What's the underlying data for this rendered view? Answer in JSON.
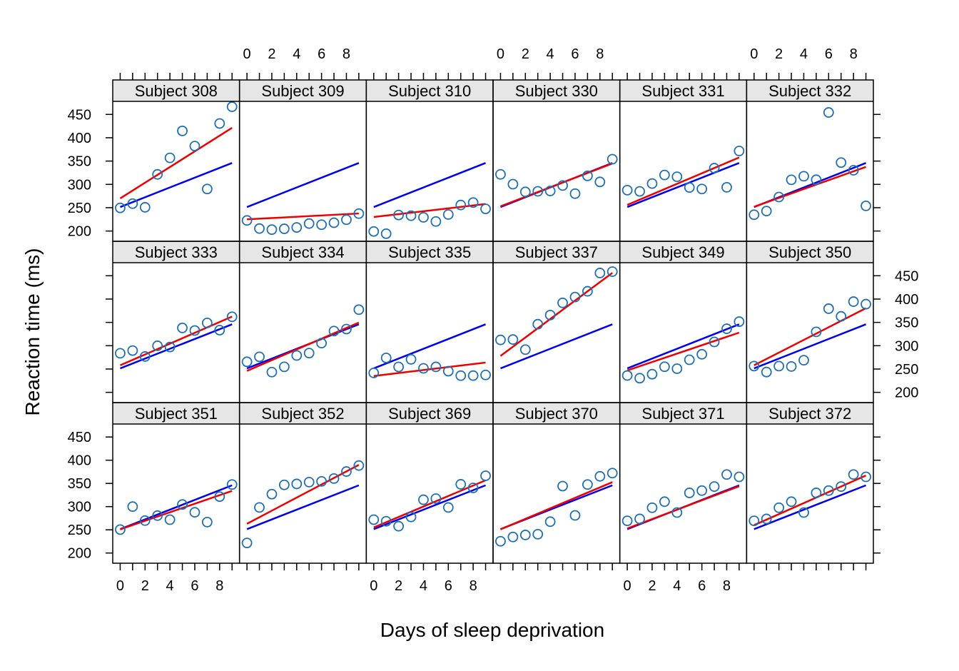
{
  "chart_data": {
    "type": "scatter",
    "xlabel": "Days of sleep deprivation",
    "ylabel": "Reaction time (ms)",
    "x_ticks": [
      0,
      2,
      4,
      6,
      8
    ],
    "y_ticks": [
      200,
      250,
      300,
      350,
      400,
      450
    ],
    "xlim": [
      -0.6,
      9.6
    ],
    "ylim": [
      178,
      478
    ],
    "grid": false,
    "colors": {
      "points": "#1f6fb4",
      "population_fit": "#0000ee",
      "subject_fit": "#ee0000",
      "strip": "#e6e6e6"
    },
    "population_line": {
      "intercept": 251.4,
      "slope": 10.5
    },
    "x": [
      0,
      1,
      2,
      3,
      4,
      5,
      6,
      7,
      8,
      9
    ],
    "panels": [
      {
        "subject": "Subject 308",
        "reaction": [
          249.6,
          258.7,
          250.8,
          321.4,
          356.9,
          414.7,
          382.2,
          290.1,
          430.6,
          466.4
        ],
        "fit": {
          "intercept": 270,
          "slope": 16.8
        }
      },
      {
        "subject": "Subject 309",
        "reaction": [
          222.7,
          205.3,
          203.0,
          204.7,
          207.7,
          216.0,
          213.6,
          217.7,
          224.3,
          237.3
        ],
        "fit": {
          "intercept": 225,
          "slope": 1.4
        }
      },
      {
        "subject": "Subject 310",
        "reaction": [
          199.1,
          194.3,
          234.3,
          232.8,
          229.3,
          220.5,
          235.4,
          255.8,
          261.0,
          247.5
        ],
        "fit": {
          "intercept": 230,
          "slope": 3.1
        }
      },
      {
        "subject": "Subject 330",
        "reaction": [
          321.5,
          300.4,
          283.9,
          285.1,
          285.8,
          297.6,
          280.2,
          318.3,
          305.3,
          354.0
        ],
        "fit": {
          "intercept": 253,
          "slope": 10.2
        }
      },
      {
        "subject": "Subject 331",
        "reaction": [
          287.6,
          285.0,
          301.8,
          320.1,
          316.3,
          293.3,
          290.1,
          334.8,
          293.7,
          371.6
        ],
        "fit": {
          "intercept": 256,
          "slope": 11.3
        }
      },
      {
        "subject": "Subject 332",
        "reaction": [
          234.9,
          242.8,
          272.9,
          309.8,
          317.5,
          309.9,
          454.2,
          346.8,
          330.3,
          253.9
        ],
        "fit": {
          "intercept": 252,
          "slope": 9.5
        }
      },
      {
        "subject": "Subject 333",
        "reaction": [
          283.8,
          289.6,
          276.8,
          299.8,
          297.2,
          338.1,
          332.6,
          348.8,
          333.4,
          362.0
        ],
        "fit": {
          "intercept": 258,
          "slope": 11.6
        }
      },
      {
        "subject": "Subject 334",
        "reaction": [
          265.5,
          276.2,
          243.4,
          254.7,
          279.0,
          284.2,
          305.5,
          331.5,
          335.7,
          377.3
        ],
        "fit": {
          "intercept": 246,
          "slope": 11.5
        }
      },
      {
        "subject": "Subject 335",
        "reaction": [
          241.6,
          273.9,
          254.5,
          270.8,
          251.5,
          254.6,
          245.4,
          235.8,
          235.9,
          237.3
        ],
        "fit": {
          "intercept": 235,
          "slope": 3.2
        }
      },
      {
        "subject": "Subject 337",
        "reaction": [
          312.4,
          313.2,
          291.6,
          346.1,
          365.7,
          391.8,
          404.3,
          416.7,
          455.9,
          458.9
        ],
        "fit": {
          "intercept": 278,
          "slope": 19.8
        }
      },
      {
        "subject": "Subject 349",
        "reaction": [
          236.1,
          230.3,
          238.9,
          254.9,
          250.7,
          269.8,
          281.6,
          308.1,
          336.3,
          351.6
        ],
        "fit": {
          "intercept": 247,
          "slope": 9.0
        }
      },
      {
        "subject": "Subject 350",
        "reaction": [
          256.3,
          243.5,
          256.2,
          255.5,
          268.9,
          329.7,
          379.4,
          362.9,
          394.5,
          389.1
        ],
        "fit": {
          "intercept": 258,
          "slope": 13.6
        }
      },
      {
        "subject": "Subject 351",
        "reaction": [
          250.5,
          300.0,
          269.9,
          280.6,
          271.8,
          304.6,
          287.7,
          266.6,
          321.5,
          347.6
        ],
        "fit": {
          "intercept": 251,
          "slope": 9.2
        }
      },
      {
        "subject": "Subject 352",
        "reaction": [
          221.7,
          298.2,
          326.9,
          346.9,
          348.9,
          352.8,
          354.4,
          360.5,
          375.6,
          388.5
        ],
        "fit": {
          "intercept": 263,
          "slope": 14.1
        }
      },
      {
        "subject": "Subject 369",
        "reaction": [
          271.9,
          268.4,
          257.7,
          277.7,
          314.8,
          317.2,
          298.1,
          348.1,
          340.3,
          366.5
        ],
        "fit": {
          "intercept": 255,
          "slope": 11.3
        }
      },
      {
        "subject": "Subject 370",
        "reaction": [
          225.3,
          234.5,
          238.9,
          240.5,
          267.5,
          344.2,
          281.1,
          347.6,
          365.2,
          372.2
        ],
        "fit": {
          "intercept": 251,
          "slope": 11.3
        }
      },
      {
        "subject": "Subject 371",
        "reaction": [
          269.4,
          273.5,
          297.6,
          310.6,
          287.2,
          329.6,
          334.5,
          343.2,
          369.1,
          364.1
        ],
        "fit": {
          "intercept": 253,
          "slope": 10.1
        }
      },
      {
        "subject": "Subject 372",
        "reaction": [
          269.4,
          273.5,
          297.6,
          310.6,
          287.2,
          329.6,
          334.5,
          343.2,
          369.1,
          364.1
        ],
        "fit": {
          "intercept": 260,
          "slope": 11.9
        }
      }
    ]
  }
}
